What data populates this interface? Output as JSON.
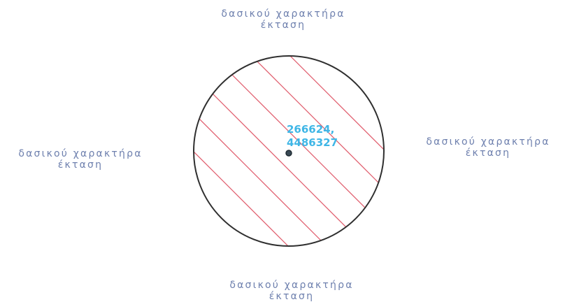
{
  "labels": {
    "top": {
      "line1": "δασικού χαρακτήρα",
      "line2": "έκταση"
    },
    "left": {
      "line1": "δασικού χαρακτήρα",
      "line2": "έκταση"
    },
    "right": {
      "line1": "δασικού χαρακτήρα",
      "line2": "έκταση"
    },
    "bottom": {
      "line1": "δασικού χαρακτήρα",
      "line2": "έκταση"
    }
  },
  "point": {
    "x": "266624,",
    "y": "4486327"
  },
  "colors": {
    "label_text": "#6e80ae",
    "coordinate_text": "#3fb6e6",
    "circle_outline": "#2f2f2f",
    "hatch_lines": "#e05a6a",
    "point_marker": "#3a4a55"
  }
}
